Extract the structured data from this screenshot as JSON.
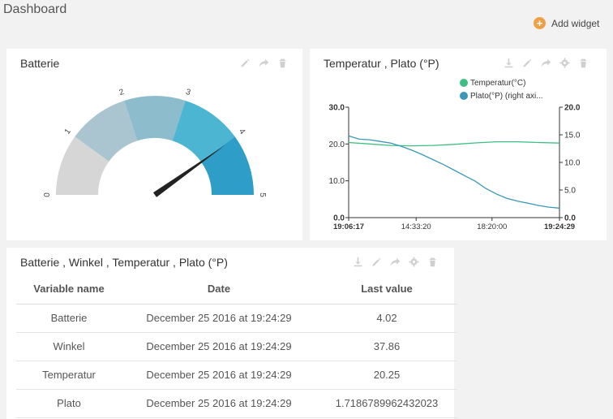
{
  "header": {
    "title": "Dashboard",
    "add_widget_label": "Add widget"
  },
  "colors": {
    "temperature": "#3dbf83",
    "plato": "#3b97b8",
    "gauge_needle": "#222222"
  },
  "gauge_widget": {
    "title": "Batterie",
    "tools": [
      "edit-icon",
      "share-icon",
      "trash-icon"
    ],
    "min": 0,
    "max": 5,
    "value": 4.02,
    "ticks": [
      "0",
      "1",
      "2",
      "3",
      "4",
      "5"
    ],
    "segment_colors": [
      "#d6d6d6",
      "#aac5cf",
      "#8dbdcc",
      "#4cb5d1",
      "#2e9ec9"
    ]
  },
  "chart_widget": {
    "title": "Temperatur , Plato (°P)",
    "tools": [
      "download-icon",
      "edit-icon",
      "share-icon",
      "gear-icon",
      "trash-icon"
    ],
    "chart_data": {
      "type": "line",
      "series": [
        {
          "name": "Temperatur(°C)",
          "axis": "left",
          "values": [
            [
              0,
              20.4
            ],
            [
              0.1,
              20.0
            ],
            [
              0.2,
              19.6
            ],
            [
              0.3,
              19.5
            ],
            [
              0.4,
              19.6
            ],
            [
              0.5,
              19.9
            ],
            [
              0.6,
              20.3
            ],
            [
              0.7,
              20.6
            ],
            [
              0.8,
              20.6
            ],
            [
              0.9,
              20.4
            ],
            [
              1.0,
              20.25
            ]
          ]
        },
        {
          "name": "Plato(°P) (right axi...",
          "axis": "right",
          "values": [
            [
              0,
              14.8
            ],
            [
              0.05,
              14.2
            ],
            [
              0.1,
              14.1
            ],
            [
              0.15,
              13.8
            ],
            [
              0.2,
              13.5
            ],
            [
              0.25,
              12.9
            ],
            [
              0.3,
              12.2
            ],
            [
              0.35,
              11.4
            ],
            [
              0.4,
              10.5
            ],
            [
              0.45,
              9.6
            ],
            [
              0.5,
              8.6
            ],
            [
              0.55,
              7.6
            ],
            [
              0.6,
              6.6
            ],
            [
              0.65,
              5.3
            ],
            [
              0.7,
              4.3
            ],
            [
              0.75,
              3.5
            ],
            [
              0.8,
              3.0
            ],
            [
              0.85,
              2.6
            ],
            [
              0.9,
              2.2
            ],
            [
              0.95,
              1.9
            ],
            [
              1.0,
              1.72
            ]
          ]
        }
      ],
      "y_left": {
        "min": 0,
        "max": 30,
        "ticks": [
          "30.0",
          "20.0",
          "10.0",
          "0.0"
        ]
      },
      "y_right": {
        "min": 0,
        "max": 20,
        "ticks": [
          "20.0",
          "15.0",
          "10.0",
          "5.0",
          "0.0"
        ]
      },
      "x_ticks": [
        "19:06:17",
        "14:33:20",
        "18:20:00",
        "19:24:29"
      ],
      "grid": false,
      "legend_position": "top-right"
    }
  },
  "table_widget": {
    "title": "Batterie , Winkel , Temperatur , Plato (°P)",
    "tools": [
      "download-icon",
      "edit-icon",
      "share-icon",
      "gear-icon",
      "trash-icon"
    ],
    "columns": [
      "Variable name",
      "Date",
      "Last value"
    ],
    "rows": [
      [
        "Batterie",
        "December 25 2016 at 19:24:29",
        "4.02"
      ],
      [
        "Winkel",
        "December 25 2016 at 19:24:29",
        "37.86"
      ],
      [
        "Temperatur",
        "December 25 2016 at 19:24:29",
        "20.25"
      ],
      [
        "Plato",
        "December 25 2016 at 19:24:29",
        "1.7186789962432023"
      ]
    ]
  }
}
